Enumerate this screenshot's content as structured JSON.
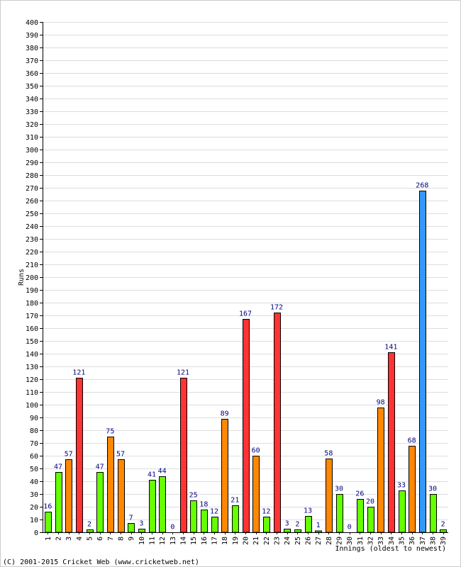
{
  "chart_data": {
    "type": "bar",
    "ylabel": "Runs",
    "xlabel": "Innings (oldest to newest)",
    "ylim": [
      0,
      400
    ],
    "ytick_step": 10,
    "grid": true,
    "categories": [
      "1",
      "2",
      "3",
      "4",
      "5",
      "6",
      "7",
      "8",
      "9",
      "10",
      "11",
      "12",
      "13",
      "14",
      "15",
      "16",
      "17",
      "18",
      "19",
      "20",
      "21",
      "22",
      "23",
      "24",
      "25",
      "26",
      "27",
      "28",
      "29",
      "30",
      "31",
      "32",
      "33",
      "34",
      "35",
      "36",
      "37",
      "38",
      "39"
    ],
    "values": [
      16,
      47,
      57,
      121,
      2,
      47,
      75,
      57,
      7,
      3,
      41,
      44,
      0,
      121,
      25,
      18,
      12,
      89,
      21,
      167,
      60,
      12,
      172,
      3,
      2,
      13,
      1,
      58,
      30,
      0,
      26,
      20,
      98,
      141,
      33,
      68,
      268,
      30,
      2
    ],
    "colors": {
      "under_50": "#66ff00",
      "50_to_99": "#ff8800",
      "100_to_199": "#ff3333",
      "200_plus": "#3399ff"
    },
    "copyright": "(C) 2001-2015 Cricket Web (www.cricketweb.net)"
  }
}
